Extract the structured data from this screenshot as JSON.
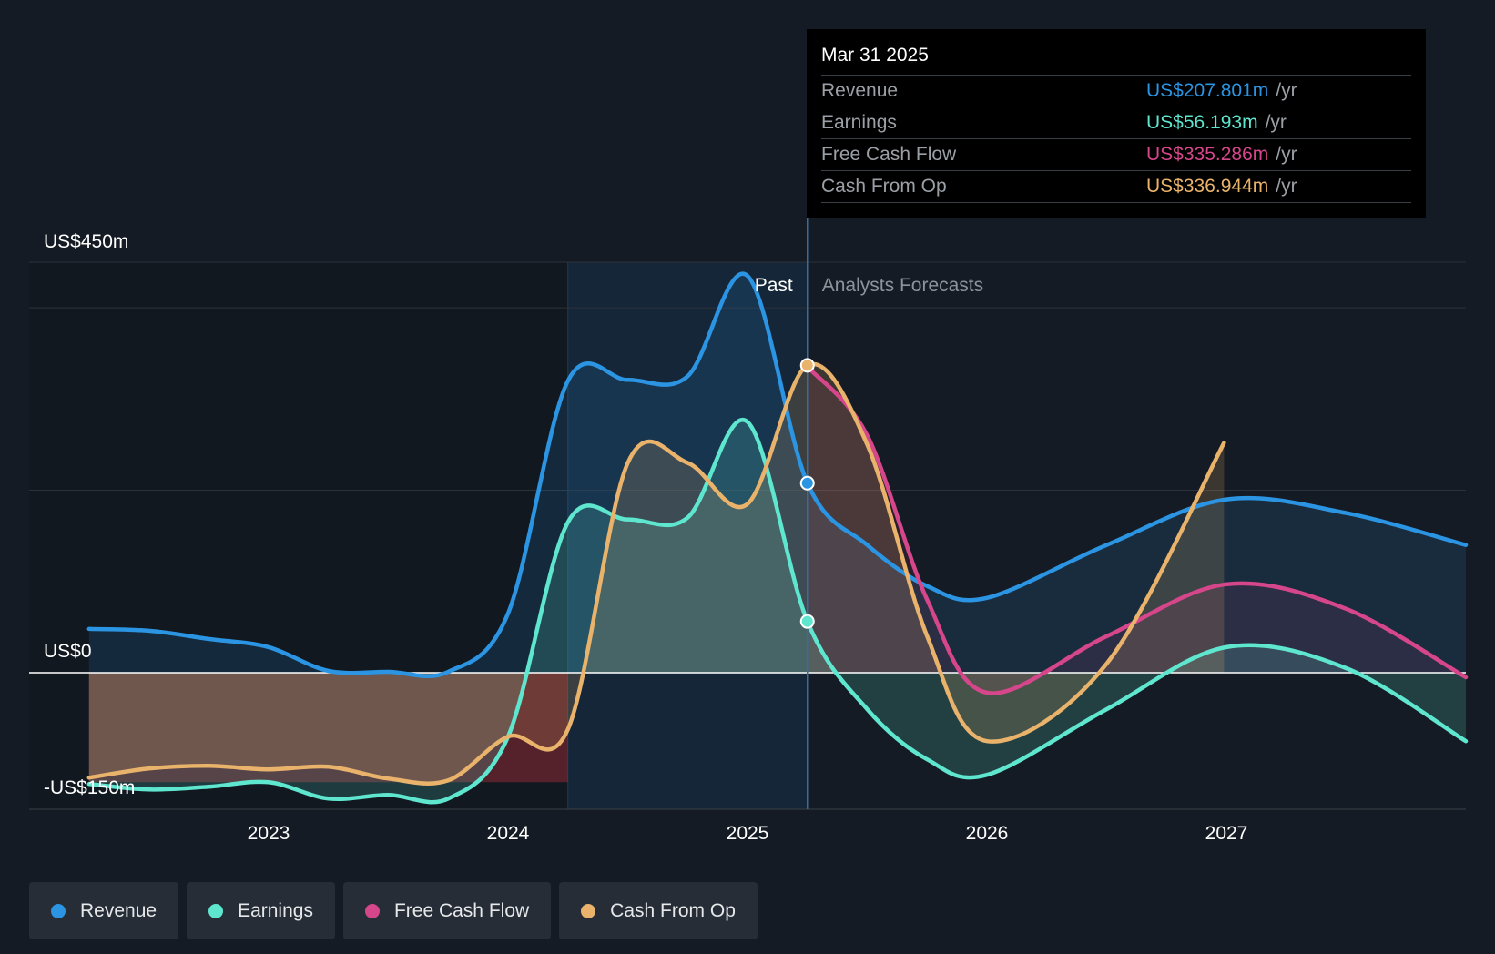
{
  "tooltip": {
    "date": "Mar 31 2025",
    "rows": [
      {
        "label": "Revenue",
        "value": "US$207.801m",
        "unit": "/yr",
        "color": "#2b95e3"
      },
      {
        "label": "Earnings",
        "value": "US$56.193m",
        "unit": "/yr",
        "color": "#5fe6cf"
      },
      {
        "label": "Free Cash Flow",
        "value": "US$335.286m",
        "unit": "/yr",
        "color": "#d6468a"
      },
      {
        "label": "Cash From Op",
        "value": "US$336.944m",
        "unit": "/yr",
        "color": "#eab36b"
      }
    ]
  },
  "legend": [
    {
      "label": "Revenue",
      "color": "#2b95e3"
    },
    {
      "label": "Earnings",
      "color": "#5fe6cf"
    },
    {
      "label": "Free Cash Flow",
      "color": "#d6468a"
    },
    {
      "label": "Cash From Op",
      "color": "#eab36b"
    }
  ],
  "chart_data": {
    "type": "area",
    "title": "",
    "xlabel": "",
    "ylabel": "",
    "y_labels": [
      "US$450m",
      "US$0",
      "-US$150m"
    ],
    "past_label": "Past",
    "forecast_label": "Analysts Forecasts",
    "divider_x": 2025.25,
    "past_band_start": 2024.25,
    "xlim": [
      2022.0,
      2027.98
    ],
    "ylim": [
      -150,
      450
    ],
    "x_ticks": [
      2023,
      2024,
      2025,
      2026,
      2027
    ],
    "x_tick_labels": [
      "2023",
      "2024",
      "2025",
      "2026",
      "2027"
    ],
    "series": [
      {
        "name": "Revenue",
        "color": "#2b95e3",
        "points": [
          [
            2022.25,
            48
          ],
          [
            2022.5,
            46
          ],
          [
            2022.75,
            37
          ],
          [
            2023.0,
            28
          ],
          [
            2023.25,
            2
          ],
          [
            2023.5,
            1
          ],
          [
            2023.75,
            1
          ],
          [
            2024.0,
            65
          ],
          [
            2024.25,
            320
          ],
          [
            2024.5,
            321
          ],
          [
            2024.75,
            325
          ],
          [
            2025.0,
            435
          ],
          [
            2025.25,
            207.8
          ],
          [
            2025.5,
            140
          ],
          [
            2025.75,
            95
          ],
          [
            2026.0,
            82
          ],
          [
            2026.5,
            140
          ],
          [
            2027.0,
            190
          ],
          [
            2027.5,
            175
          ],
          [
            2028.0,
            140
          ]
        ]
      },
      {
        "name": "Earnings",
        "color": "#5fe6cf",
        "points": [
          [
            2022.25,
            -122
          ],
          [
            2022.5,
            -128
          ],
          [
            2022.75,
            -125
          ],
          [
            2023.0,
            -120
          ],
          [
            2023.25,
            -138
          ],
          [
            2023.5,
            -134
          ],
          [
            2023.75,
            -138
          ],
          [
            2024.0,
            -70
          ],
          [
            2024.25,
            165
          ],
          [
            2024.5,
            168
          ],
          [
            2024.75,
            170
          ],
          [
            2025.0,
            275
          ],
          [
            2025.25,
            56.2
          ],
          [
            2025.5,
            -40
          ],
          [
            2025.75,
            -95
          ],
          [
            2026.0,
            -112
          ],
          [
            2026.5,
            -40
          ],
          [
            2027.0,
            28
          ],
          [
            2027.5,
            5
          ],
          [
            2028.0,
            -75
          ]
        ]
      },
      {
        "name": "Free Cash Flow",
        "color": "#d6468a",
        "points": [
          [
            2025.25,
            335.3
          ],
          [
            2025.5,
            260
          ],
          [
            2025.75,
            80
          ],
          [
            2026.0,
            -22
          ],
          [
            2026.5,
            40
          ],
          [
            2027.0,
            97
          ],
          [
            2027.5,
            70
          ],
          [
            2028.0,
            -5
          ]
        ]
      },
      {
        "name": "Cash From Op",
        "color": "#eab36b",
        "points": [
          [
            2022.25,
            -115
          ],
          [
            2022.5,
            -105
          ],
          [
            2022.75,
            -102
          ],
          [
            2023.0,
            -106
          ],
          [
            2023.25,
            -103
          ],
          [
            2023.5,
            -116
          ],
          [
            2023.75,
            -118
          ],
          [
            2024.0,
            -70
          ],
          [
            2024.25,
            -62
          ],
          [
            2024.5,
            230
          ],
          [
            2024.75,
            230
          ],
          [
            2025.0,
            185
          ],
          [
            2025.25,
            336.9
          ],
          [
            2025.5,
            250
          ],
          [
            2025.75,
            40
          ],
          [
            2026.0,
            -75
          ],
          [
            2026.5,
            10
          ],
          [
            2026.99,
            252
          ]
        ]
      }
    ]
  }
}
